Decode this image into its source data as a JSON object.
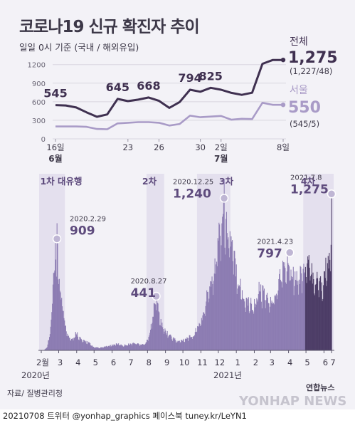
{
  "title": "코로나19 신규 확진자 추이",
  "subtitle": "일일 0시 기준 (국내 / 해외유입)",
  "source": "자료/ 질병관리청",
  "footer": "20210708 트위터 @yonhap_graphics  페이스북 tuney.kr/LeYN1",
  "logo_text": "연합뉴스",
  "watermark": "YONHAP NEWS",
  "colors": {
    "total": "#3f3050",
    "seoul": "#a99bc7",
    "bar": "#8c7cb2",
    "bar_recent": "#4c3c66",
    "wave": "#e4e0ee",
    "accent_text": "#5e4b7d"
  },
  "chart_data": [
    {
      "type": "line",
      "x": [
        "6.16",
        "6.17",
        "6.18",
        "6.19",
        "6.20",
        "6.21",
        "6.22",
        "6.23",
        "6.24",
        "6.25",
        "6.26",
        "6.27",
        "6.28",
        "6.29",
        "6.30",
        "7.1",
        "7.2",
        "7.3",
        "7.4",
        "7.5",
        "7.6",
        "7.7",
        "7.8"
      ],
      "x_tick_labels": [
        "16일",
        "23",
        "26",
        "30",
        "2일",
        "8일"
      ],
      "month_labels": [
        "6월",
        "7월"
      ],
      "yticks": [
        0,
        300,
        600,
        900,
        1200
      ],
      "ylim": [
        0,
        1300
      ],
      "series": [
        {
          "name": "전체",
          "values": [
            545,
            540,
            507,
            429,
            357,
            395,
            645,
            610,
            634,
            668,
            614,
            501,
            595,
            794,
            762,
            825,
            794,
            743,
            711,
            746,
            1212,
            1275,
            1275
          ]
        },
        {
          "name": "서울",
          "values": [
            200,
            200,
            200,
            195,
            160,
            155,
            250,
            260,
            270,
            270,
            260,
            215,
            240,
            375,
            350,
            360,
            370,
            310,
            325,
            320,
            583,
            550,
            550
          ]
        }
      ],
      "callouts": [
        {
          "index": 0,
          "text": "545"
        },
        {
          "index": 6,
          "text": "645"
        },
        {
          "index": 9,
          "text": "668"
        },
        {
          "index": 13,
          "text": "794"
        },
        {
          "index": 15,
          "text": "825"
        }
      ],
      "end_labels": [
        {
          "series": "전체",
          "value": "1,275",
          "detail": "(1,227/48)"
        },
        {
          "series": "서울",
          "value": "550",
          "detail": "(545/5)"
        }
      ]
    },
    {
      "type": "bar",
      "x_month_labels": [
        "2",
        "3",
        "4",
        "5",
        "6",
        "7",
        "8",
        "9",
        "10",
        "11",
        "12",
        "1",
        "2",
        "3",
        "4",
        "5",
        "6",
        "7"
      ],
      "month_suffix": "월",
      "year_labels": [
        "2020년",
        "2021년"
      ],
      "waves": [
        "1차 대유행",
        "2차",
        "3차",
        "4차"
      ],
      "anchors": [
        {
          "t": 0,
          "v": 1
        },
        {
          "t": 5,
          "v": 2
        },
        {
          "t": 10,
          "v": 30
        },
        {
          "t": 14,
          "v": 120
        },
        {
          "t": 18,
          "v": 300
        },
        {
          "t": 20,
          "v": 500
        },
        {
          "t": 22,
          "v": 740
        },
        {
          "t": 24,
          "v": 813
        },
        {
          "t": 26,
          "v": 600
        },
        {
          "t": 27,
          "v": 909
        },
        {
          "t": 30,
          "v": 580
        },
        {
          "t": 35,
          "v": 420
        },
        {
          "t": 40,
          "v": 250
        },
        {
          "t": 45,
          "v": 125
        },
        {
          "t": 50,
          "v": 110
        },
        {
          "t": 55,
          "v": 90
        },
        {
          "t": 60,
          "v": 150
        },
        {
          "t": 70,
          "v": 80
        },
        {
          "t": 80,
          "v": 70
        },
        {
          "t": 90,
          "v": 27
        },
        {
          "t": 100,
          "v": 20
        },
        {
          "t": 110,
          "v": 30
        },
        {
          "t": 120,
          "v": 40
        },
        {
          "t": 130,
          "v": 55
        },
        {
          "t": 140,
          "v": 40
        },
        {
          "t": 150,
          "v": 50
        },
        {
          "t": 160,
          "v": 60
        },
        {
          "t": 170,
          "v": 50
        },
        {
          "t": 180,
          "v": 55
        },
        {
          "t": 188,
          "v": 166
        },
        {
          "t": 192,
          "v": 279
        },
        {
          "t": 196,
          "v": 400
        },
        {
          "t": 198,
          "v": 441
        },
        {
          "t": 202,
          "v": 320
        },
        {
          "t": 208,
          "v": 200
        },
        {
          "t": 215,
          "v": 150
        },
        {
          "t": 225,
          "v": 110
        },
        {
          "t": 235,
          "v": 70
        },
        {
          "t": 245,
          "v": 90
        },
        {
          "t": 255,
          "v": 110
        },
        {
          "t": 262,
          "v": 120
        },
        {
          "t": 270,
          "v": 200
        },
        {
          "t": 280,
          "v": 300
        },
        {
          "t": 287,
          "v": 500
        },
        {
          "t": 293,
          "v": 600
        },
        {
          "t": 300,
          "v": 690
        },
        {
          "t": 305,
          "v": 950
        },
        {
          "t": 310,
          "v": 1030
        },
        {
          "t": 315,
          "v": 1240
        },
        {
          "t": 318,
          "v": 970
        },
        {
          "t": 320,
          "v": 1050
        },
        {
          "t": 330,
          "v": 800
        },
        {
          "t": 340,
          "v": 580
        },
        {
          "t": 345,
          "v": 500
        },
        {
          "t": 350,
          "v": 420
        },
        {
          "t": 360,
          "v": 400
        },
        {
          "t": 365,
          "v": 350
        },
        {
          "t": 375,
          "v": 500
        },
        {
          "t": 385,
          "v": 450
        },
        {
          "t": 395,
          "v": 400
        },
        {
          "t": 405,
          "v": 450
        },
        {
          "t": 410,
          "v": 600
        },
        {
          "t": 420,
          "v": 700
        },
        {
          "t": 425,
          "v": 680
        },
        {
          "t": 428,
          "v": 797
        },
        {
          "t": 432,
          "v": 650
        },
        {
          "t": 440,
          "v": 600
        },
        {
          "t": 450,
          "v": 650
        },
        {
          "t": 460,
          "v": 700
        },
        {
          "t": 470,
          "v": 600
        },
        {
          "t": 480,
          "v": 560
        },
        {
          "t": 485,
          "v": 550
        },
        {
          "t": 490,
          "v": 700
        },
        {
          "t": 495,
          "v": 680
        },
        {
          "t": 498,
          "v": 745
        },
        {
          "t": 499,
          "v": 1212
        },
        {
          "t": 500,
          "v": 1275
        }
      ],
      "ylim": [
        0,
        1300
      ],
      "callouts": [
        {
          "t": 27,
          "date": "2020.2.29",
          "value": "909"
        },
        {
          "t": 198,
          "date": "2020.8.27",
          "value": "441"
        },
        {
          "t": 315,
          "date": "2020.12.25",
          "value": "1,240"
        },
        {
          "t": 428,
          "date": "2021.4.23",
          "value": "797"
        },
        {
          "t": 500,
          "date": "2021.7.8",
          "value": "1,275"
        }
      ]
    }
  ]
}
